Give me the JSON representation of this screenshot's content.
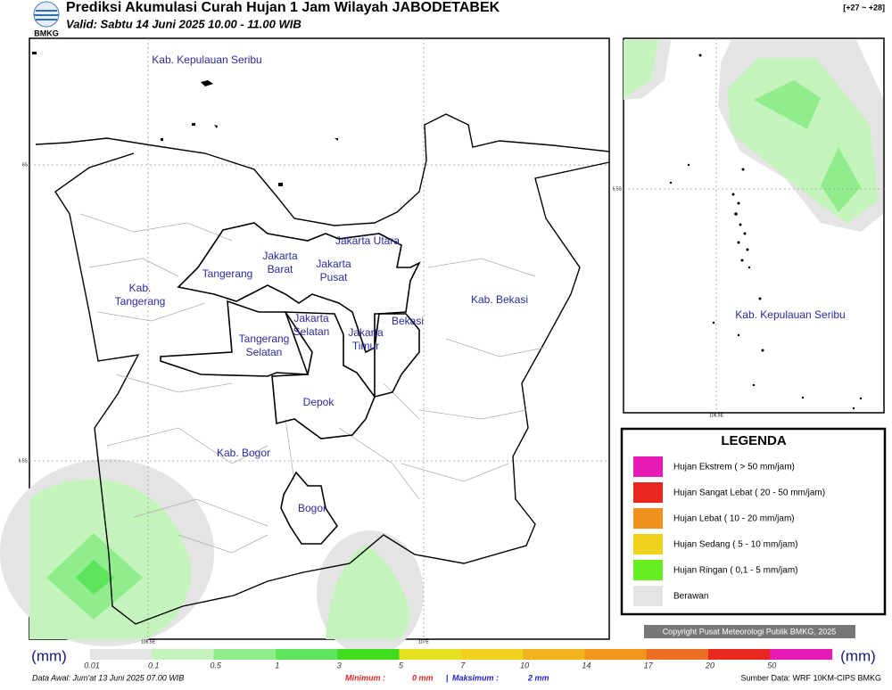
{
  "header": {
    "logo": "BMKG",
    "title": "Prediksi Akumulasi Curah Hujan 1 Jam Wilayah JABODETABEK",
    "valid": "Valid: Sabtu 14 Juni 2025 10.00 - 11.00 WIB",
    "range": "[+27 ~ +28]"
  },
  "map": {
    "labels": [
      [
        "Kab. Kepulauan Seribu"
      ],
      [
        "Jakarta Utara"
      ],
      [
        "Jakarta",
        "Barat"
      ],
      [
        "Jakarta",
        "Pusat"
      ],
      [
        "Tangerang"
      ],
      [
        "Kab.",
        "Tangerang"
      ],
      [
        "Jakarta",
        "Selatan"
      ],
      [
        "Jakarta",
        "Timur"
      ],
      [
        "Bekasi"
      ],
      [
        "Kab. Bekasi"
      ],
      [
        "Tangerang",
        "Selatan"
      ],
      [
        "Depok"
      ],
      [
        "Kab. Bogor"
      ],
      [
        "Bogor"
      ]
    ],
    "lat_labels": [
      "6S",
      "6.5S"
    ],
    "lon_labels": [
      "106.5E",
      "107E"
    ]
  },
  "inset": {
    "label": "Kab. Kepulauan Seribu",
    "lat_label": "5.5S",
    "lon_label": "106.5E"
  },
  "legend": {
    "title": "LEGENDA",
    "items": [
      {
        "label": "Hujan Ekstrem ( > 50 mm/jam)",
        "color": "#e81cb4"
      },
      {
        "label": "Hujan Sangat Lebat ( 20 - 50 mm/jam)",
        "color": "#e82820"
      },
      {
        "label": "Hujan Lebat ( 10 - 20 mm/jam)",
        "color": "#f0901e"
      },
      {
        "label": "Hujan Sedang ( 5 - 10 mm/jam)",
        "color": "#f0d21e"
      },
      {
        "label": "Hujan Ringan ( 0,1 - 5 mm/jam)",
        "color": "#66ee22"
      },
      {
        "label": "Berawan",
        "color": "#e4e4e4"
      }
    ]
  },
  "copyright": "Copyright Pusat Meteorologi Publik BMKG, 2025",
  "colorbar": {
    "unit": "(mm)",
    "ticks": [
      "0.01",
      "0.1",
      "0.5",
      "1",
      "3",
      "5",
      "7",
      "10",
      "14",
      "17",
      "20",
      "50"
    ],
    "colors": [
      "#e4e4e4",
      "#c4f4bc",
      "#90ec8c",
      "#5ee45a",
      "#40dc1e",
      "#e6e020",
      "#f0d21e",
      "#f0b41e",
      "#f0961e",
      "#ec6e20",
      "#e82820",
      "#e81cb4"
    ]
  },
  "footer": {
    "data_awal": "Data Awal: Jum'at 13 Juni 2025 07.00 WIB",
    "min_label": "Minimum :",
    "min_value": "0 mm",
    "separator": "|",
    "max_label": "Maksimum :",
    "max_value": "2 mm",
    "source": "Sumber Data: WRF 10KM-CIPS BMKG"
  }
}
